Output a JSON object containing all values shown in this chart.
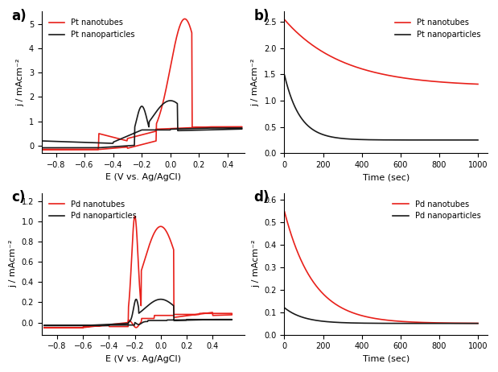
{
  "panel_a": {
    "title": "a)",
    "xlabel": "E (V vs. Ag/AgCl)",
    "ylabel": "j / mAcm⁻²",
    "xlim": [
      -0.9,
      0.52
    ],
    "ylim": [
      -0.3,
      5.5
    ],
    "xticks": [
      -0.8,
      -0.6,
      -0.4,
      -0.2,
      0.0,
      0.2,
      0.4
    ],
    "yticks": [
      0,
      1,
      2,
      3,
      4,
      5
    ],
    "red_color": "#e8201a",
    "black_color": "#1a1a1a",
    "legend": [
      "Pt nanotubes",
      "Pt nanoparticles"
    ]
  },
  "panel_b": {
    "title": "b)",
    "xlabel": "Time (sec)",
    "ylabel": "j / mAcm⁻²",
    "xlim": [
      0,
      1050
    ],
    "ylim": [
      0.0,
      2.7
    ],
    "xticks": [
      0,
      200,
      400,
      600,
      800,
      1000
    ],
    "yticks": [
      0.0,
      0.5,
      1.0,
      1.5,
      2.0,
      2.5
    ],
    "red_color": "#e8201a",
    "black_color": "#1a1a1a",
    "legend": [
      "Pt nanotubes",
      "Pt nanoparticles"
    ]
  },
  "panel_c": {
    "title": "c)",
    "xlabel": "E (V vs. Ag/AgCl)",
    "ylabel": "j / mAcm⁻²",
    "xlim": [
      -0.92,
      0.65
    ],
    "ylim": [
      -0.12,
      1.28
    ],
    "xticks": [
      -0.8,
      -0.6,
      -0.4,
      -0.2,
      0.0,
      0.2,
      0.4
    ],
    "yticks": [
      0.0,
      0.2,
      0.4,
      0.6,
      0.8,
      1.0,
      1.2
    ],
    "red_color": "#e8201a",
    "black_color": "#1a1a1a",
    "legend": [
      "Pd nanotubes",
      "Pd nanoparticles"
    ]
  },
  "panel_d": {
    "title": "d)",
    "xlabel": "Time (sec)",
    "ylabel": "j / mAcm⁻²",
    "xlim": [
      0,
      1050
    ],
    "ylim": [
      0.0,
      0.63
    ],
    "xticks": [
      0,
      200,
      400,
      600,
      800,
      1000
    ],
    "yticks": [
      0.0,
      0.1,
      0.2,
      0.3,
      0.4,
      0.5,
      0.6
    ],
    "red_color": "#e8201a",
    "black_color": "#1a1a1a",
    "legend": [
      "Pd nanotubes",
      "Pd nanoparticles"
    ]
  }
}
